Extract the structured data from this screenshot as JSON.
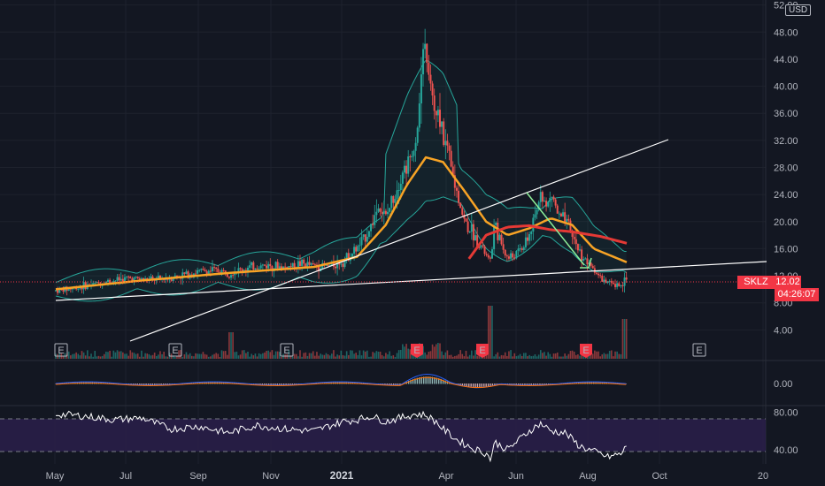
{
  "header": {
    "currency": "USD"
  },
  "ticker": {
    "symbol": "SKLZ",
    "price": "12.02",
    "countdown": "04:26:07"
  },
  "colors": {
    "up": "#26a69a",
    "down": "#ef5350",
    "ema_fast": "#f7a325",
    "ema_slow": "#e53935",
    "bb": "#26a69a",
    "trend": "#ffffff",
    "rsi": "#ffffff",
    "rsi_band": "#2a1f4a"
  },
  "chart_data": {
    "type": "line",
    "price_axis": {
      "ticks": [
        "4.00",
        "8.00",
        "12.00",
        "16.00",
        "20.00",
        "24.00",
        "28.00",
        "32.00",
        "36.00",
        "40.00",
        "44.00",
        "48.00",
        "52.00"
      ],
      "ylim": [
        0,
        53
      ]
    },
    "macd_axis": {
      "ticks": [
        "0.00"
      ]
    },
    "rsi_axis": {
      "ticks": [
        "40.00",
        "80.00"
      ],
      "ylim": [
        20,
        90
      ]
    },
    "time_axis": {
      "labels": [
        "May",
        "Jul",
        "Sep",
        "Nov",
        "2021",
        "Apr",
        "Jun",
        "Aug",
        "Oct",
        "20"
      ]
    },
    "earnings_markers": [
      "E",
      "E",
      "E",
      "E",
      "E",
      "E",
      "E"
    ],
    "price": [
      [
        0,
        9.8
      ],
      [
        10,
        10.1
      ],
      [
        20,
        10.5
      ],
      [
        30,
        10.9
      ],
      [
        40,
        11.3
      ],
      [
        50,
        11.6
      ],
      [
        60,
        11.5
      ],
      [
        70,
        11.4
      ],
      [
        80,
        11.7
      ],
      [
        90,
        12.2
      ],
      [
        100,
        12.6
      ],
      [
        110,
        12.8
      ],
      [
        120,
        12.5
      ],
      [
        130,
        12.9
      ],
      [
        140,
        13.4
      ],
      [
        150,
        13.6
      ],
      [
        160,
        13.2
      ],
      [
        170,
        13.8
      ],
      [
        180,
        13.5
      ],
      [
        190,
        13.4
      ],
      [
        200,
        14.2
      ],
      [
        210,
        16.0
      ],
      [
        215,
        17.5
      ],
      [
        220,
        19.5
      ],
      [
        225,
        22.5
      ],
      [
        230,
        20.5
      ],
      [
        235,
        23.5
      ],
      [
        240,
        26.5
      ],
      [
        245,
        28.5
      ],
      [
        250,
        31.0
      ],
      [
        253,
        36.0
      ],
      [
        256,
        44.0
      ],
      [
        258,
        46.0
      ],
      [
        260,
        41.0
      ],
      [
        263,
        38.0
      ],
      [
        265,
        34.5
      ],
      [
        268,
        36.0
      ],
      [
        270,
        33.0
      ],
      [
        273,
        30.0
      ],
      [
        276,
        27.5
      ],
      [
        280,
        24.0
      ],
      [
        285,
        20.0
      ],
      [
        290,
        18.5
      ],
      [
        295,
        17.0
      ],
      [
        300,
        15.0
      ],
      [
        303,
        14.0
      ],
      [
        306,
        20.0
      ],
      [
        310,
        17.0
      ],
      [
        315,
        14.5
      ],
      [
        320,
        15.0
      ],
      [
        325,
        16.0
      ],
      [
        330,
        18.0
      ],
      [
        335,
        21.0
      ],
      [
        338,
        25.0
      ],
      [
        342,
        22.0
      ],
      [
        346,
        24.0
      ],
      [
        350,
        21.0
      ],
      [
        355,
        20.0
      ],
      [
        360,
        18.0
      ],
      [
        365,
        15.5
      ],
      [
        370,
        14.0
      ],
      [
        375,
        13.0
      ],
      [
        380,
        11.5
      ],
      [
        385,
        10.8
      ],
      [
        390,
        10.5
      ],
      [
        395,
        11.0
      ],
      [
        398,
        12.02
      ]
    ],
    "ema_fast": [
      [
        0,
        10.0
      ],
      [
        60,
        11.3
      ],
      [
        120,
        12.4
      ],
      [
        180,
        13.3
      ],
      [
        210,
        14.8
      ],
      [
        230,
        19.5
      ],
      [
        245,
        25.5
      ],
      [
        258,
        29.5
      ],
      [
        270,
        28.8
      ],
      [
        285,
        24.5
      ],
      [
        300,
        20.0
      ],
      [
        315,
        18.0
      ],
      [
        330,
        19.0
      ],
      [
        345,
        20.5
      ],
      [
        360,
        19.5
      ],
      [
        375,
        16.0
      ],
      [
        398,
        14.0
      ]
    ],
    "ema_slow": [
      [
        288,
        14.5
      ],
      [
        300,
        18.0
      ],
      [
        315,
        19.2
      ],
      [
        330,
        19.4
      ],
      [
        345,
        18.8
      ],
      [
        360,
        18.5
      ],
      [
        380,
        17.8
      ],
      [
        398,
        16.8
      ]
    ],
    "rsi": [
      [
        0,
        78
      ],
      [
        20,
        76
      ],
      [
        40,
        72
      ],
      [
        60,
        74
      ],
      [
        80,
        62
      ],
      [
        100,
        65
      ],
      [
        120,
        58
      ],
      [
        140,
        66
      ],
      [
        160,
        62
      ],
      [
        180,
        60
      ],
      [
        200,
        70
      ],
      [
        210,
        72
      ],
      [
        220,
        76
      ],
      [
        230,
        70
      ],
      [
        240,
        74
      ],
      [
        250,
        78
      ],
      [
        258,
        77
      ],
      [
        265,
        70
      ],
      [
        270,
        62
      ],
      [
        280,
        50
      ],
      [
        290,
        42
      ],
      [
        300,
        36
      ],
      [
        303,
        30
      ],
      [
        306,
        48
      ],
      [
        315,
        40
      ],
      [
        330,
        60
      ],
      [
        338,
        68
      ],
      [
        345,
        60
      ],
      [
        355,
        58
      ],
      [
        365,
        44
      ],
      [
        375,
        38
      ],
      [
        385,
        32
      ],
      [
        395,
        36
      ],
      [
        398,
        45
      ]
    ]
  }
}
